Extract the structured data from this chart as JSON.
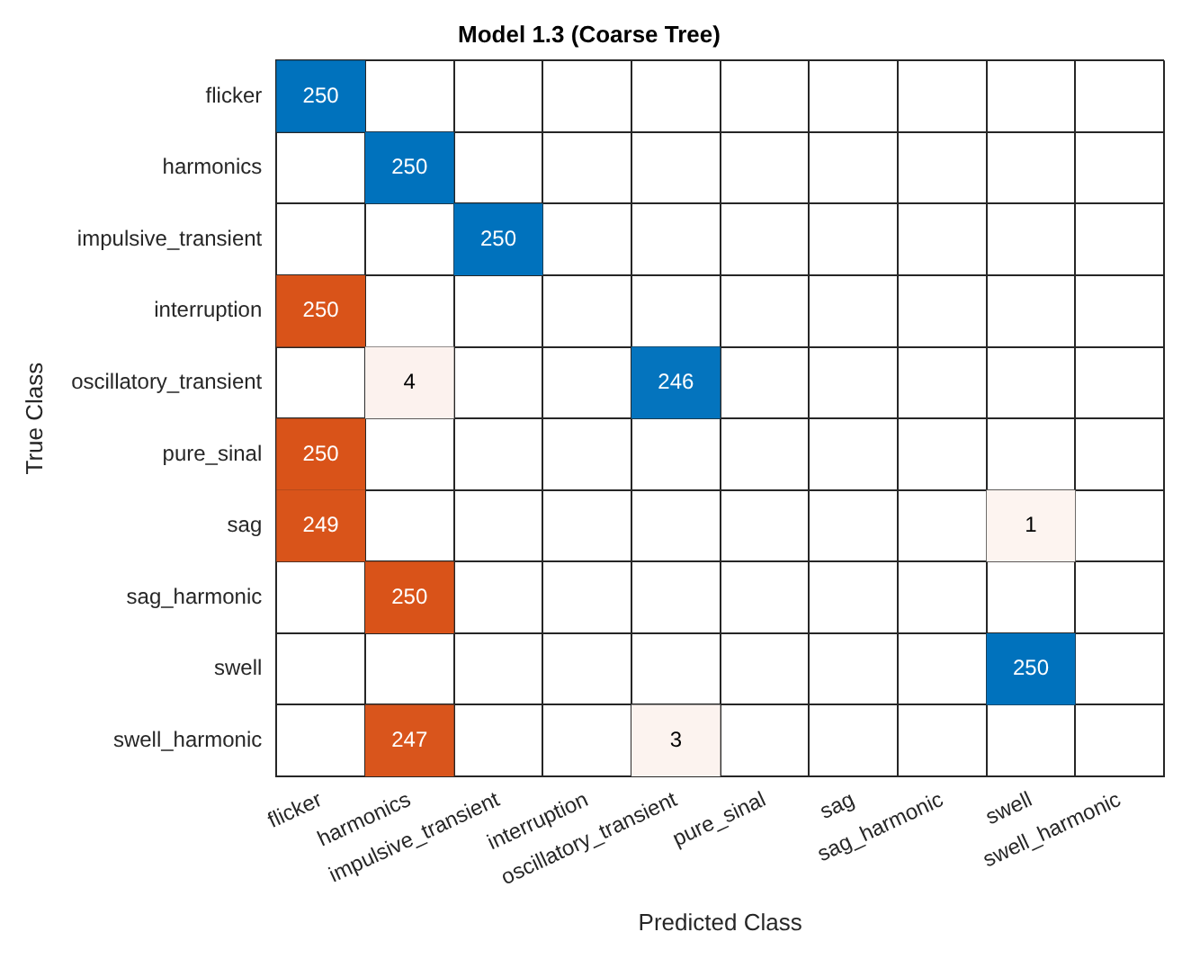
{
  "chart_data": {
    "type": "heatmap",
    "title": "Model 1.3 (Coarse Tree)",
    "xlabel": "Predicted Class",
    "ylabel": "True Class",
    "categories": [
      "flicker",
      "harmonics",
      "impulsive_transient",
      "interruption",
      "oscillatory_transient",
      "pure_sinal",
      "sag",
      "sag_harmonic",
      "swell",
      "swell_harmonic"
    ],
    "y_categories": [
      "flicker",
      "harmonics",
      "impulsive_transient",
      "interruption",
      "oscillatory_transient",
      "pure_sinal",
      "sag",
      "sag_harmonic",
      "swell",
      "swell_harmonic"
    ],
    "colors": [
      "#0072bd",
      "#d95319"
    ],
    "cells": [
      [
        250,
        null,
        null,
        null,
        null,
        null,
        null,
        null,
        null,
        null
      ],
      [
        null,
        250,
        null,
        null,
        null,
        null,
        null,
        null,
        null,
        null
      ],
      [
        null,
        null,
        250,
        null,
        null,
        null,
        null,
        null,
        null,
        null
      ],
      [
        250,
        null,
        null,
        null,
        null,
        null,
        null,
        null,
        null,
        null
      ],
      [
        null,
        4,
        null,
        null,
        246,
        null,
        null,
        null,
        null,
        null
      ],
      [
        250,
        null,
        null,
        null,
        null,
        null,
        null,
        null,
        null,
        null
      ],
      [
        249,
        null,
        null,
        null,
        null,
        null,
        null,
        null,
        1,
        null
      ],
      [
        null,
        250,
        null,
        null,
        null,
        null,
        null,
        null,
        null,
        null
      ],
      [
        null,
        null,
        null,
        null,
        null,
        null,
        null,
        null,
        250,
        null
      ],
      [
        null,
        247,
        null,
        null,
        3,
        null,
        null,
        null,
        null,
        null
      ]
    ],
    "data_labels": true,
    "grid": true
  }
}
